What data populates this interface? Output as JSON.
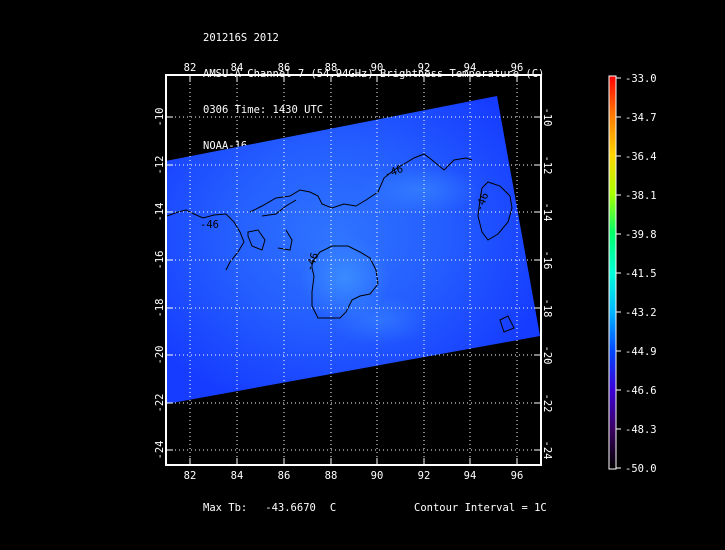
{
  "header": {
    "line1": "201216S 2012",
    "line2": "AMSU-A Channel 7 (54.94GHz) Brightness Temperature (C)",
    "line3": "0306 Time: 1430 UTC",
    "line4": "NOAA-16"
  },
  "map": {
    "lon_range": [
      81,
      97
    ],
    "lat_range": [
      -24.5,
      -9
    ],
    "lon_ticks": [
      "82",
      "84",
      "86",
      "88",
      "90",
      "92",
      "94",
      "96"
    ],
    "lat_ticks": [
      "-10",
      "-12",
      "-14",
      "-16",
      "-18",
      "-20",
      "-22",
      "-24"
    ],
    "contour_labels": [
      "-46",
      "-46",
      "-46",
      "-46"
    ],
    "colors": {
      "background": "#000000",
      "swath_main": "#1a48ff",
      "swath_light": "#2a6cff",
      "frame": "#ffffff",
      "contour": "#000000"
    }
  },
  "colorbar": {
    "labels": [
      "-33.0",
      "-34.7",
      "-36.4",
      "-38.1",
      "-39.8",
      "-41.5",
      "-43.2",
      "-44.9",
      "-46.6",
      "-48.3",
      "-50.0"
    ],
    "colors": [
      "#ff0000",
      "#ff7a00",
      "#ffd400",
      "#a8ff00",
      "#00ff6a",
      "#00ffd8",
      "#00b6ff",
      "#0047ff",
      "#3b00d6",
      "#3a0060",
      "#000000"
    ]
  },
  "footer": {
    "max_label": "Max Tb:",
    "max_value": "-43.6670",
    "max_unit": "C",
    "contour_interval": "Contour Interval = 1C"
  }
}
